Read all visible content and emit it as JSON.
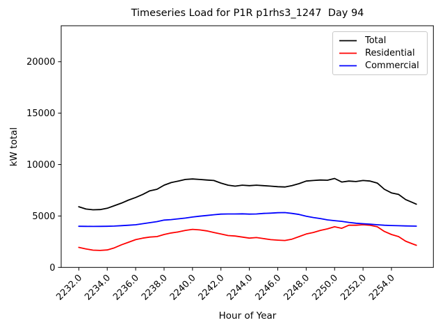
{
  "title": "Timeseries Load for P1R p1rhs3_1247  Day 94",
  "chart_data": {
    "type": "line",
    "title": "Timeseries Load for P1R p1rhs3_1247  Day 94",
    "xlabel": "Hour of Year",
    "ylabel": "kW total",
    "xlim": [
      2230.76,
      2256.95
    ],
    "ylim": [
      0,
      23500
    ],
    "grid": false,
    "legend_position": "upper right",
    "xticks": {
      "values": [
        2232,
        2234,
        2236,
        2238,
        2240,
        2242,
        2244,
        2246,
        2248,
        2250,
        2252,
        2254
      ],
      "labels": [
        "2232.0",
        "2234.0",
        "2236.0",
        "2238.0",
        "2240.0",
        "2242.0",
        "2244.0",
        "2246.0",
        "2248.0",
        "2250.0",
        "2252.0",
        "2254.0"
      ]
    },
    "yticks": {
      "values": [
        0,
        5000,
        10000,
        15000,
        20000
      ],
      "labels": [
        "0",
        "5000",
        "10000",
        "15000",
        "20000"
      ]
    },
    "x": [
      2232.0,
      2232.5,
      2233.0,
      2233.5,
      2234.0,
      2234.5,
      2235.0,
      2235.5,
      2236.0,
      2236.5,
      2237.0,
      2237.5,
      2238.0,
      2238.5,
      2239.0,
      2239.5,
      2240.0,
      2240.5,
      2241.0,
      2241.5,
      2242.0,
      2242.5,
      2243.0,
      2243.5,
      2244.0,
      2244.5,
      2245.0,
      2245.5,
      2246.0,
      2246.5,
      2247.0,
      2247.5,
      2248.0,
      2248.5,
      2249.0,
      2249.5,
      2250.0,
      2250.5,
      2251.0,
      2251.5,
      2252.0,
      2252.5,
      2253.0,
      2253.5,
      2254.0,
      2254.5,
      2255.0,
      2255.5,
      2255.75
    ],
    "series": [
      {
        "name": "Total",
        "color": "#000000",
        "values": [
          5900,
          5680,
          5600,
          5620,
          5750,
          6000,
          6250,
          6550,
          6800,
          7100,
          7450,
          7600,
          8000,
          8250,
          8400,
          8550,
          8600,
          8550,
          8500,
          8450,
          8200,
          8000,
          7900,
          8000,
          7950,
          8000,
          7950,
          7900,
          7850,
          7820,
          7950,
          8150,
          8400,
          8450,
          8500,
          8480,
          8650,
          8300,
          8400,
          8350,
          8450,
          8400,
          8200,
          7600,
          7250,
          7100,
          6600,
          6300,
          6150
        ]
      },
      {
        "name": "Residential",
        "color": "#ff0000",
        "values": [
          1950,
          1800,
          1680,
          1650,
          1700,
          1900,
          2200,
          2450,
          2700,
          2850,
          2950,
          3000,
          3200,
          3350,
          3450,
          3600,
          3700,
          3650,
          3550,
          3400,
          3250,
          3100,
          3050,
          2950,
          2850,
          2900,
          2800,
          2700,
          2650,
          2620,
          2750,
          3000,
          3250,
          3400,
          3600,
          3750,
          3950,
          3800,
          4100,
          4100,
          4150,
          4100,
          3950,
          3500,
          3200,
          3000,
          2550,
          2280,
          2150
        ]
      },
      {
        "name": "Commercial",
        "color": "#0000ff",
        "values": [
          4000,
          3990,
          3985,
          3990,
          4000,
          4020,
          4060,
          4100,
          4150,
          4250,
          4350,
          4450,
          4600,
          4650,
          4720,
          4800,
          4900,
          4980,
          5050,
          5120,
          5180,
          5200,
          5200,
          5210,
          5180,
          5200,
          5250,
          5280,
          5320,
          5330,
          5250,
          5150,
          4980,
          4850,
          4750,
          4620,
          4550,
          4480,
          4380,
          4300,
          4250,
          4200,
          4150,
          4100,
          4075,
          4050,
          4030,
          4020,
          4010
        ]
      }
    ]
  }
}
